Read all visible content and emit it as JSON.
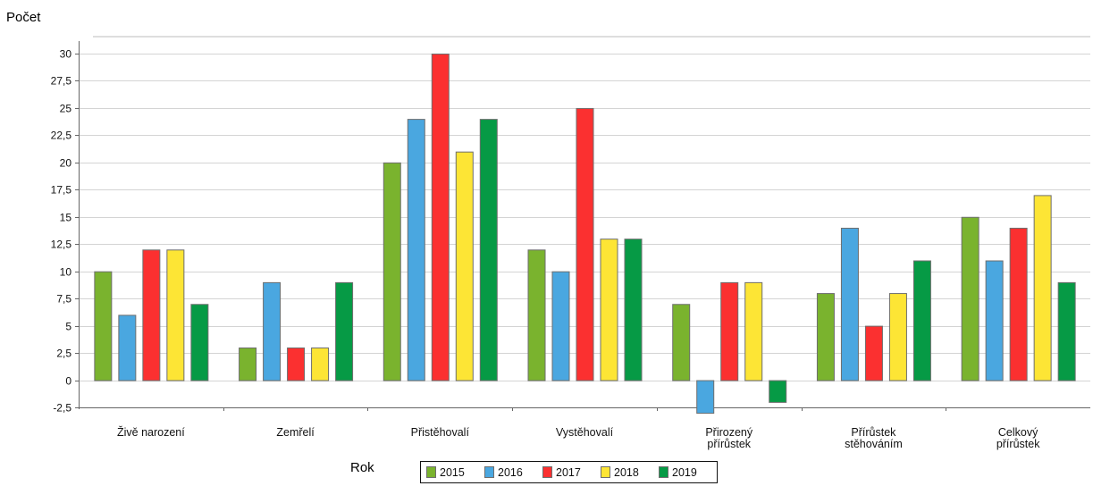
{
  "chart_data": {
    "type": "bar",
    "ylabel": "Počet",
    "xlabel": "Rok",
    "ylim": [
      -2.5,
      30
    ],
    "ytick_step": 2.5,
    "yticks": [
      "-2,5",
      "0",
      "2,5",
      "5",
      "7,5",
      "10",
      "12,5",
      "15",
      "17,5",
      "20",
      "22,5",
      "25",
      "27,5",
      "30"
    ],
    "grid": true,
    "legend_position": "bottom-center",
    "categories": [
      [
        "Živě narození"
      ],
      [
        "Zemřelí"
      ],
      [
        "Přistěhovalí"
      ],
      [
        "Vystěhovalí"
      ],
      [
        "Přirozený",
        "přírůstek"
      ],
      [
        "Přírůstek",
        "stěhováním"
      ],
      [
        "Celkový",
        "přírůstek"
      ]
    ],
    "series": [
      {
        "name": "2015",
        "color": "#7ab32e",
        "values": [
          10,
          3,
          20,
          12,
          7,
          8,
          15
        ]
      },
      {
        "name": "2016",
        "color": "#4aa7e0",
        "values": [
          6,
          9,
          24,
          10,
          -3,
          14,
          11
        ]
      },
      {
        "name": "2017",
        "color": "#fb3030",
        "values": [
          12,
          3,
          30,
          25,
          9,
          5,
          14
        ]
      },
      {
        "name": "2018",
        "color": "#fde535",
        "values": [
          12,
          3,
          21,
          13,
          9,
          8,
          17
        ]
      },
      {
        "name": "2019",
        "color": "#069a45",
        "values": [
          7,
          9,
          24,
          13,
          -2,
          11,
          9
        ]
      }
    ]
  }
}
